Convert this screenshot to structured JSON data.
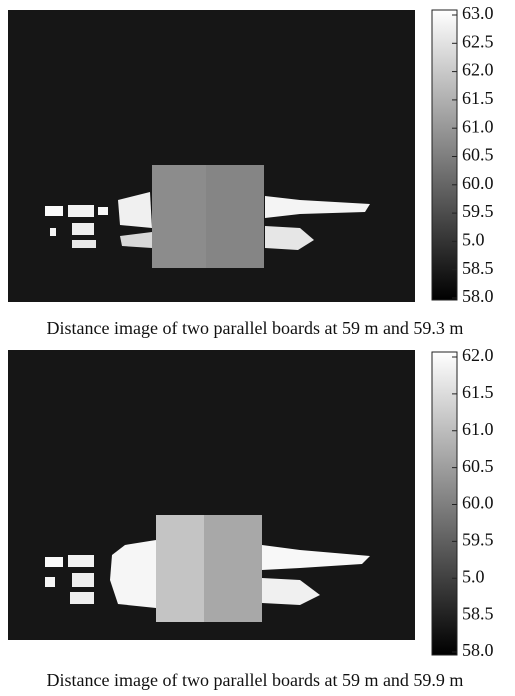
{
  "panels": [
    {
      "caption": "Distance image of two parallel boards at 59 m and 59.3 m",
      "colorbar_labels": [
        "63.0",
        "62.5",
        "62.0",
        "61.5",
        "61.0",
        "60.5",
        "60.0",
        "59.5",
        "5.0",
        "58.5",
        "58.0"
      ]
    },
    {
      "caption": "Distance image of two parallel boards at 59 m and 59.9 m",
      "colorbar_labels": [
        "62.0",
        "61.5",
        "61.0",
        "60.5",
        "60.0",
        "59.5",
        "5.0",
        "58.5",
        "58.0"
      ]
    }
  ]
}
